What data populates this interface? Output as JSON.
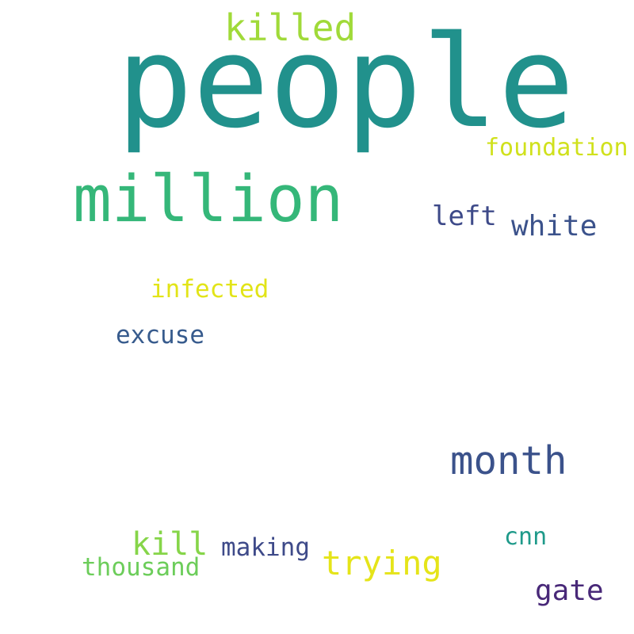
{
  "word_cloud": {
    "words": [
      {
        "text": "people",
        "color": "#21918c"
      },
      {
        "text": "million",
        "color": "#35b779"
      },
      {
        "text": "killed",
        "color": "#a0da39"
      },
      {
        "text": "foundation",
        "color": "#d0e11c"
      },
      {
        "text": "left",
        "color": "#3e4a89"
      },
      {
        "text": "white",
        "color": "#3b528b"
      },
      {
        "text": "infected",
        "color": "#e2e418"
      },
      {
        "text": "excuse",
        "color": "#375b8d"
      },
      {
        "text": "month",
        "color": "#3b528b"
      },
      {
        "text": "kill",
        "color": "#86d549"
      },
      {
        "text": "making",
        "color": "#3e4a89"
      },
      {
        "text": "trying",
        "color": "#e5e419"
      },
      {
        "text": "cnn",
        "color": "#1f9a8a"
      },
      {
        "text": "thousand",
        "color": "#6ccd5a"
      },
      {
        "text": "gate",
        "color": "#482878"
      }
    ]
  }
}
